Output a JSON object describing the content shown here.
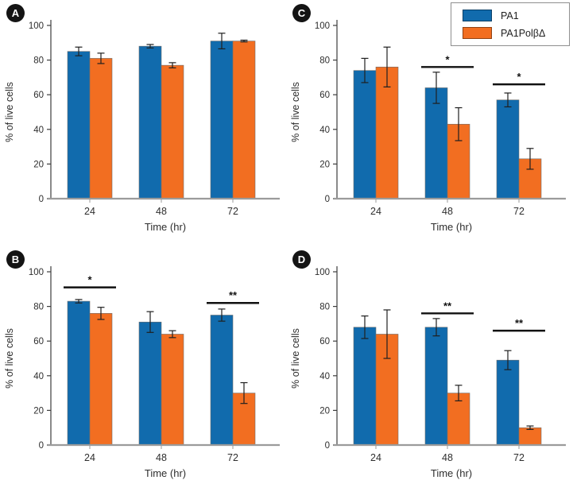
{
  "figure": {
    "legend": {
      "items": [
        {
          "label": "PA1",
          "color": "#116bad"
        },
        {
          "label": "PA1PolβΔ",
          "color": "#f26e21"
        }
      ]
    },
    "colors": {
      "pa1_blue": "#116bad",
      "polbd_orange": "#f26e21",
      "bar_outline": "#6e6e6e",
      "error_bar": "#1f1f1f",
      "x_axis_gray": "#9b9b9b",
      "y_axis_dark": "#3d3d3d",
      "tick_text": "#2e2e2e",
      "significance": "#111111",
      "badge_bg": "#141414"
    }
  },
  "chart_data": [
    {
      "panel": "A",
      "type": "bar",
      "categories": [
        "24",
        "48",
        "72"
      ],
      "xlabel": "Time (hr)",
      "ylabel": "% of live cells",
      "ylim": [
        0,
        100
      ],
      "yticks": [
        0,
        20,
        40,
        60,
        80,
        100
      ],
      "series": [
        {
          "name": "PA1",
          "color": "#116bad",
          "values": [
            85,
            88,
            91
          ],
          "errors": [
            2.5,
            1,
            4.5
          ]
        },
        {
          "name": "PA1PolβΔ",
          "color": "#f26e21",
          "values": [
            81,
            77,
            91
          ],
          "errors": [
            3,
            1.5,
            0.5
          ]
        }
      ],
      "significance": []
    },
    {
      "panel": "B",
      "type": "bar",
      "categories": [
        "24",
        "48",
        "72"
      ],
      "xlabel": "Time (hr)",
      "ylabel": "% of live cells",
      "ylim": [
        0,
        100
      ],
      "yticks": [
        0,
        20,
        40,
        60,
        80,
        100
      ],
      "series": [
        {
          "name": "PA1",
          "color": "#116bad",
          "values": [
            83,
            71,
            75
          ],
          "errors": [
            1,
            6,
            3.5
          ]
        },
        {
          "name": "PA1PolβΔ",
          "color": "#f26e21",
          "values": [
            76,
            64,
            30
          ],
          "errors": [
            3.5,
            2,
            6
          ]
        }
      ],
      "significance": [
        {
          "category": "24",
          "label": "*",
          "line_y": 91
        },
        {
          "category": "72",
          "label": "**",
          "line_y": 82
        }
      ]
    },
    {
      "panel": "C",
      "type": "bar",
      "categories": [
        "24",
        "48",
        "72"
      ],
      "xlabel": "Time (hr)",
      "ylabel": "% of live cells",
      "ylim": [
        0,
        100
      ],
      "yticks": [
        0,
        20,
        40,
        60,
        80,
        100
      ],
      "series": [
        {
          "name": "PA1",
          "color": "#116bad",
          "values": [
            74,
            64,
            57
          ],
          "errors": [
            7,
            9,
            4
          ]
        },
        {
          "name": "PA1PolβΔ",
          "color": "#f26e21",
          "values": [
            76,
            43,
            23
          ],
          "errors": [
            11.5,
            9.5,
            6
          ]
        }
      ],
      "significance": [
        {
          "category": "48",
          "label": "*",
          "line_y": 76
        },
        {
          "category": "72",
          "label": "*",
          "line_y": 66
        }
      ]
    },
    {
      "panel": "D",
      "type": "bar",
      "categories": [
        "24",
        "48",
        "72"
      ],
      "xlabel": "Time (hr)",
      "ylabel": "% of live cells",
      "ylim": [
        0,
        100
      ],
      "yticks": [
        0,
        20,
        40,
        60,
        80,
        100
      ],
      "series": [
        {
          "name": "PA1",
          "color": "#116bad",
          "values": [
            68,
            68,
            49
          ],
          "errors": [
            6.5,
            5,
            5.5
          ]
        },
        {
          "name": "PA1PolβΔ",
          "color": "#f26e21",
          "values": [
            64,
            30,
            10
          ],
          "errors": [
            14,
            4.5,
            1
          ]
        }
      ],
      "significance": [
        {
          "category": "48",
          "label": "**",
          "line_y": 76
        },
        {
          "category": "72",
          "label": "**",
          "line_y": 66
        }
      ]
    }
  ]
}
